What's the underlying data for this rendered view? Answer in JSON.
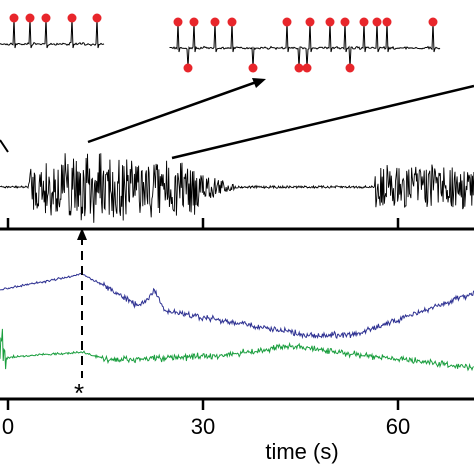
{
  "chart_data": [
    {
      "type": "line",
      "panel": "inset-traces",
      "title": "",
      "description_markers": "red dots mark detected spike peaks in zoomed insets",
      "colors": {
        "trace": "#000000",
        "marker": "#e8262b"
      }
    },
    {
      "type": "line",
      "panel": "raw-signal",
      "xlabel": "",
      "ylabel": "",
      "series": [
        {
          "color": "#000000"
        }
      ]
    },
    {
      "type": "line",
      "panel": "lower-traces",
      "xlabel": "time (s)",
      "ylabel": "",
      "x_ticks": [
        0,
        30,
        60
      ],
      "x_tick_labels": [
        "0",
        "30",
        "60"
      ],
      "xlim": [
        -1,
        72
      ],
      "series": [
        {
          "color": "#2e3192"
        },
        {
          "color": "#1a9e3e"
        }
      ],
      "event_marker": {
        "x": 12,
        "label": "*",
        "style": "dashed vertical line with arrow"
      }
    }
  ]
}
